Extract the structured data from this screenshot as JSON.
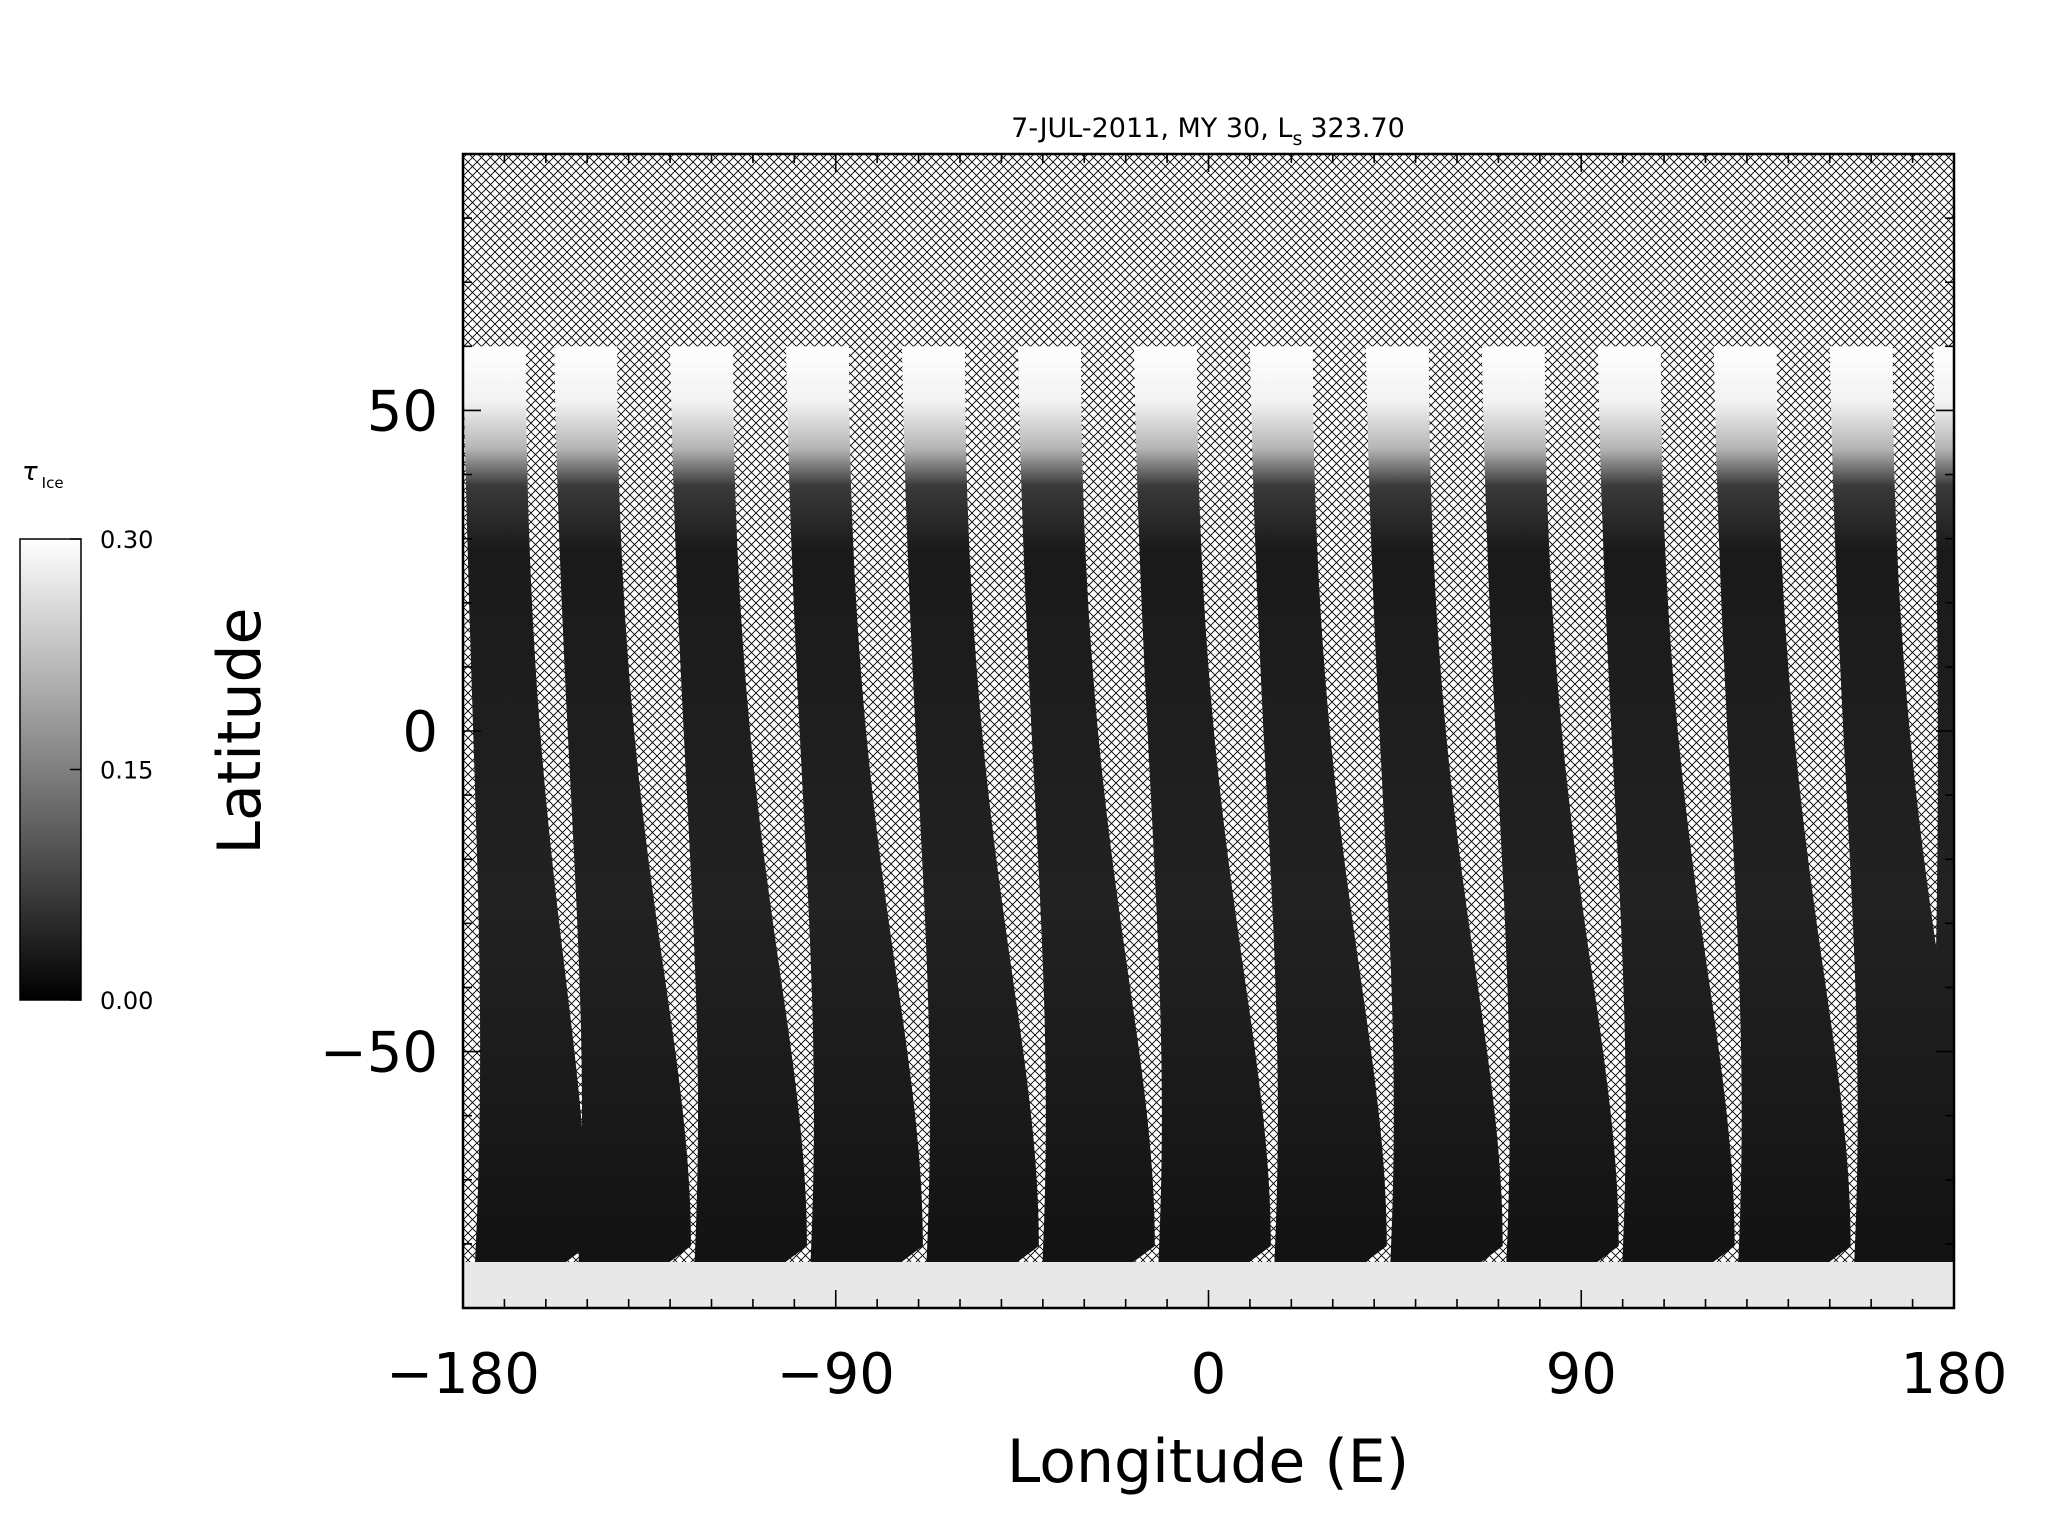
{
  "chart_data": {
    "type": "heatmap",
    "title": "7-JUL-2011, MY 30,  L",
    "title_subscript": "s",
    "title_value": "323.70",
    "xlabel": "Longitude (E)",
    "ylabel": "Latitude",
    "xlim": [
      -180,
      180
    ],
    "ylim": [
      -90,
      90
    ],
    "x_ticks": [
      {
        "value": -180,
        "label": "−180"
      },
      {
        "value": -90,
        "label": "−90"
      },
      {
        "value": 0,
        "label": "0"
      },
      {
        "value": 90,
        "label": "90"
      },
      {
        "value": 180,
        "label": "180"
      }
    ],
    "y_ticks": [
      {
        "value": 50,
        "label": "50"
      },
      {
        "value": 0,
        "label": "0"
      },
      {
        "value": -50,
        "label": "−50"
      }
    ],
    "grid": false,
    "no_data_pattern": "crosshatch",
    "colorbar": {
      "symbol": "τ",
      "subscript": "Ice",
      "min": 0.0,
      "max": 0.3,
      "ticks": [
        {
          "value": 0.3,
          "label": "0.30"
        },
        {
          "value": 0.15,
          "label": "0.15"
        },
        {
          "value": 0.0,
          "label": "0.00"
        }
      ],
      "colormap": [
        "#000000",
        "#ffffff"
      ]
    },
    "swaths": [
      {
        "lon_top": -180,
        "lon_bottom": -170
      },
      {
        "lon_top": -158,
        "lon_bottom": -145
      },
      {
        "lon_top": -130,
        "lon_bottom": -117
      },
      {
        "lon_top": -102,
        "lon_bottom": -89
      },
      {
        "lon_top": -74,
        "lon_bottom": -61
      },
      {
        "lon_top": -46,
        "lon_bottom": -33
      },
      {
        "lon_top": -18,
        "lon_bottom": -5
      },
      {
        "lon_top": 10,
        "lon_bottom": 23
      },
      {
        "lon_top": 38,
        "lon_bottom": 51
      },
      {
        "lon_top": 66,
        "lon_bottom": 79
      },
      {
        "lon_top": 94,
        "lon_bottom": 107
      },
      {
        "lon_top": 122,
        "lon_bottom": 135
      },
      {
        "lon_top": 150,
        "lon_bottom": 163
      },
      {
        "lon_top": 175,
        "lon_bottom": 180
      }
    ]
  }
}
